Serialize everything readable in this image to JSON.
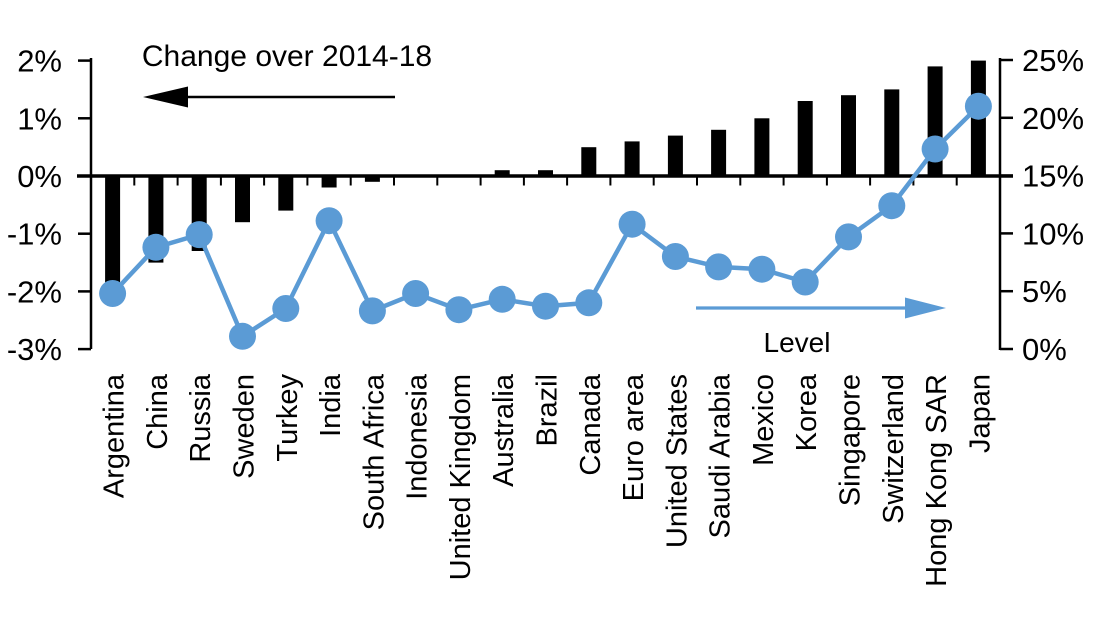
{
  "chart_data": {
    "type": "combo-bar-line",
    "title_annotation": "Change over 2014-18",
    "line_annotation": "Level",
    "categories": [
      "Argentina",
      "China",
      "Russia",
      "Sweden",
      "Turkey",
      "India",
      "South Africa",
      "Indonesia",
      "United Kingdom",
      "Australia",
      "Brazil",
      "Canada",
      "Euro area",
      "United States",
      "Saudi Arabia",
      "Mexico",
      "Korea",
      "Singapore",
      "Switzerland",
      "Hong Kong SAR",
      "Japan"
    ],
    "series": [
      {
        "name": "Change over 2014-18",
        "type": "bar",
        "axis": "left",
        "color": "#000000",
        "values": [
          -2.1,
          -1.5,
          -1.3,
          -0.8,
          -0.6,
          -0.2,
          -0.1,
          0,
          0,
          0.1,
          0.1,
          0.5,
          0.6,
          0.7,
          0.8,
          1.0,
          1.3,
          1.4,
          1.5,
          1.9,
          2.0
        ]
      },
      {
        "name": "Level",
        "type": "line",
        "axis": "right",
        "color": "#5b9bd5",
        "values": [
          4.8,
          8.8,
          9.9,
          1.1,
          3.5,
          11.1,
          3.3,
          4.8,
          3.4,
          4.3,
          3.7,
          4.0,
          10.8,
          8.0,
          7.1,
          6.9,
          5.8,
          9.7,
          12.4,
          17.3,
          21.0
        ]
      }
    ],
    "left_axis": {
      "tick_labels": [
        "2%",
        "1%",
        "0%",
        "-1%",
        "-2%",
        "-3%"
      ],
      "tick_values": [
        2,
        1,
        0,
        -1,
        -2,
        -3
      ],
      "min": -3,
      "max": 2,
      "unit": "%"
    },
    "right_axis": {
      "tick_labels": [
        "25%",
        "20%",
        "15%",
        "10%",
        "5%",
        "0%"
      ],
      "tick_values": [
        25,
        20,
        15,
        10,
        5,
        0
      ],
      "min": 0,
      "max": 25,
      "unit": "%"
    },
    "grid": false,
    "legend": "none"
  },
  "colors": {
    "bar": "#000000",
    "line": "#5b9bd5",
    "background": "#ffffff",
    "text": "#000000"
  }
}
